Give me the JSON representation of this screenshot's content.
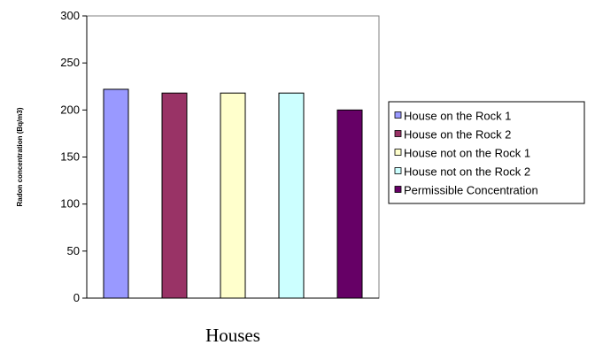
{
  "chart_data": {
    "type": "bar",
    "title": "",
    "xlabel": "Houses",
    "ylabel": "Radon concentration  (Bq/m3)",
    "ylim": [
      0,
      300
    ],
    "yticks": [
      0,
      50,
      100,
      150,
      200,
      250,
      300
    ],
    "grid": false,
    "legend_position": "right",
    "series": [
      {
        "name": "House on the Rock 1",
        "value": 222,
        "color": "#9999ff"
      },
      {
        "name": "House on the Rock 2",
        "value": 218,
        "color": "#993366"
      },
      {
        "name": "House not on the Rock 1",
        "value": 218,
        "color": "#ffffcc"
      },
      {
        "name": "House not on the Rock 2",
        "value": 218,
        "color": "#ccffff"
      },
      {
        "name": "Permissible Concentration",
        "value": 200,
        "color": "#660066"
      }
    ]
  }
}
